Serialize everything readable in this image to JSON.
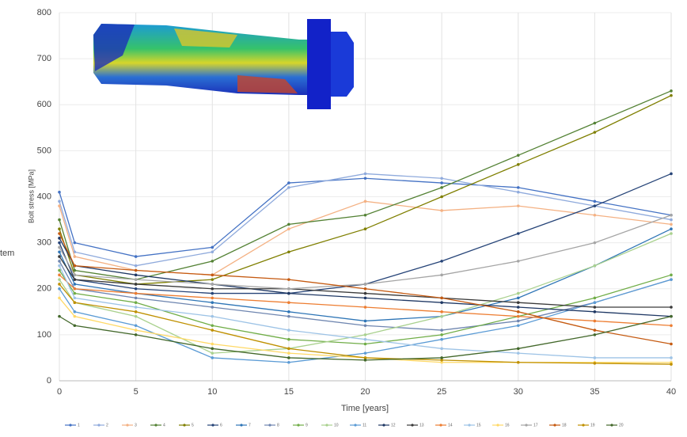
{
  "chart_data": {
    "type": "line",
    "x_label": "Time [years]",
    "y_label": "Bolt stress [MPa]",
    "side_label": "tem",
    "xlim": [
      0,
      40
    ],
    "xticks": [
      0,
      5,
      10,
      15,
      20,
      25,
      30,
      35,
      40
    ],
    "ylim": [
      0,
      800
    ],
    "yticks": [
      0,
      100,
      200,
      300,
      400,
      500,
      600,
      700,
      800
    ],
    "grid": true,
    "legend": "bottom",
    "x": [
      0,
      1,
      5,
      10,
      15,
      20,
      25,
      30,
      35,
      40
    ],
    "series": [
      {
        "name": "1",
        "color": "#4472c4",
        "values": [
          410,
          300,
          270,
          290,
          430,
          440,
          430,
          420,
          390,
          360
        ]
      },
      {
        "name": "2",
        "color": "#8faadc",
        "values": [
          390,
          280,
          250,
          280,
          420,
          450,
          440,
          410,
          380,
          350
        ]
      },
      {
        "name": "3",
        "color": "#f4b183",
        "values": [
          380,
          270,
          240,
          230,
          330,
          390,
          370,
          380,
          360,
          340
        ]
      },
      {
        "name": "4",
        "color": "#548235",
        "values": [
          350,
          240,
          220,
          260,
          340,
          360,
          420,
          490,
          560,
          630
        ]
      },
      {
        "name": "5",
        "color": "#7f7f00",
        "values": [
          330,
          230,
          210,
          220,
          280,
          330,
          400,
          470,
          540,
          620
        ]
      },
      {
        "name": "6",
        "color": "#264478",
        "values": [
          300,
          220,
          200,
          190,
          190,
          210,
          260,
          320,
          380,
          450
        ]
      },
      {
        "name": "7",
        "color": "#2e75b6",
        "values": [
          280,
          210,
          190,
          170,
          150,
          130,
          140,
          180,
          250,
          330
        ]
      },
      {
        "name": "8",
        "color": "#6f86b0",
        "values": [
          260,
          200,
          180,
          160,
          140,
          120,
          110,
          130,
          170,
          220
        ]
      },
      {
        "name": "9",
        "color": "#70ad47",
        "values": [
          240,
          190,
          170,
          120,
          90,
          80,
          100,
          140,
          180,
          230
        ]
      },
      {
        "name": "10",
        "color": "#a9d18e",
        "values": [
          220,
          170,
          140,
          60,
          70,
          100,
          140,
          190,
          250,
          320
        ]
      },
      {
        "name": "11",
        "color": "#5b9bd5",
        "values": [
          200,
          150,
          120,
          50,
          40,
          60,
          90,
          120,
          170,
          220
        ]
      },
      {
        "name": "12",
        "color": "#1f3864",
        "values": [
          310,
          250,
          230,
          210,
          190,
          180,
          170,
          160,
          150,
          140
        ]
      },
      {
        "name": "13",
        "color": "#3a3a3a",
        "values": [
          270,
          220,
          210,
          200,
          200,
          190,
          180,
          170,
          160,
          160
        ]
      },
      {
        "name": "14",
        "color": "#ed7d31",
        "values": [
          230,
          200,
          190,
          180,
          170,
          160,
          150,
          140,
          130,
          120
        ]
      },
      {
        "name": "15",
        "color": "#9dc3e6",
        "values": [
          250,
          180,
          160,
          140,
          110,
          90,
          70,
          60,
          50,
          50
        ]
      },
      {
        "name": "16",
        "color": "#ffd966",
        "values": [
          180,
          140,
          110,
          80,
          60,
          50,
          40,
          40,
          40,
          40
        ]
      },
      {
        "name": "17",
        "color": "#a5a5a5",
        "values": [
          290,
          230,
          220,
          210,
          200,
          210,
          230,
          260,
          300,
          360
        ]
      },
      {
        "name": "18",
        "color": "#c55a11",
        "values": [
          320,
          250,
          240,
          230,
          220,
          200,
          180,
          150,
          110,
          80
        ]
      },
      {
        "name": "19",
        "color": "#bf9000",
        "values": [
          210,
          170,
          150,
          110,
          70,
          50,
          45,
          40,
          38,
          36
        ]
      },
      {
        "name": "20",
        "color": "#43682b",
        "values": [
          140,
          120,
          100,
          70,
          50,
          45,
          50,
          70,
          100,
          140
        ]
      }
    ]
  }
}
